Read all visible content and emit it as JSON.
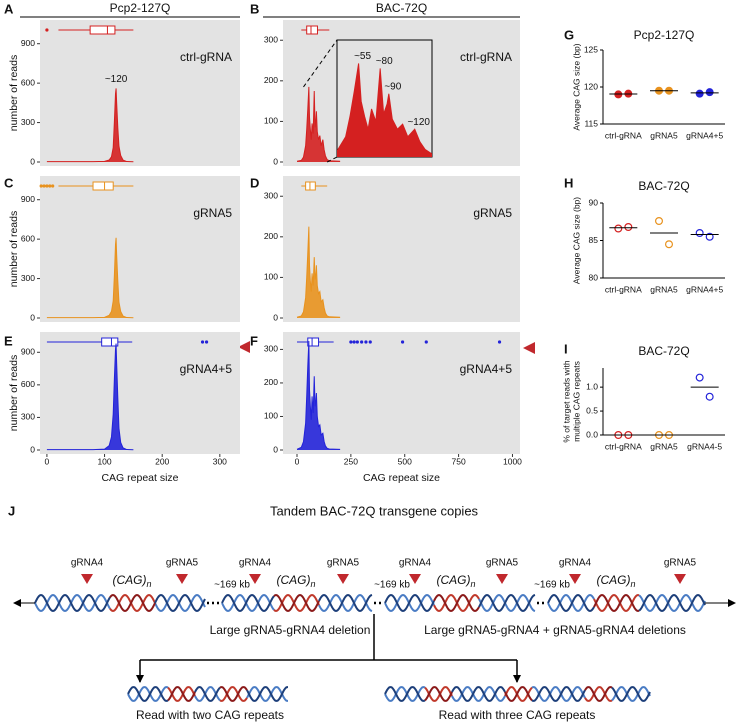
{
  "chart_data": [
    {
      "type": "area",
      "panel": "A",
      "title": "Pcp2-127Q",
      "label": "ctrl-gRNA",
      "ylabel": "number of reads",
      "color": "#d42020",
      "x": [
        0,
        40,
        80,
        100,
        108,
        112,
        115,
        117,
        119,
        120,
        121,
        123,
        125,
        128,
        132,
        138,
        150
      ],
      "values": [
        3,
        3,
        3,
        5,
        15,
        40,
        110,
        300,
        520,
        560,
        450,
        260,
        120,
        50,
        15,
        4,
        2
      ],
      "xlim": [
        -12,
        335
      ],
      "ylim": [
        0,
        1050
      ],
      "yticks": [
        0,
        300,
        600,
        900
      ],
      "box": {
        "low": 20,
        "q1": 75,
        "median": 105,
        "q3": 118,
        "high": 150,
        "outliers": [
          0
        ]
      },
      "annotations": [
        {
          "text": "~120",
          "x": 120
        }
      ]
    },
    {
      "type": "area",
      "panel": "B",
      "title": "BAC-72Q",
      "label": "ctrl-gRNA",
      "color": "#d42020",
      "x": [
        0,
        20,
        30,
        40,
        45,
        50,
        55,
        58,
        62,
        66,
        70,
        75,
        80,
        84,
        88,
        90,
        94,
        100,
        106,
        112,
        120,
        126,
        132,
        140,
        150,
        200
      ],
      "values": [
        2,
        4,
        12,
        40,
        80,
        130,
        185,
        110,
        80,
        55,
        95,
        70,
        175,
        85,
        105,
        125,
        75,
        55,
        65,
        40,
        55,
        30,
        15,
        6,
        3,
        2
      ],
      "xlim": [
        -65,
        1035
      ],
      "ylim": [
        0,
        340
      ],
      "yticks": [
        0,
        100,
        200,
        300
      ],
      "box": {
        "low": 20,
        "q1": 45,
        "median": 65,
        "q3": 95,
        "high": 150,
        "outliers": []
      },
      "inset": true,
      "annotations": [
        {
          "text": "~55",
          "x": 55
        },
        {
          "text": "~80",
          "x": 80
        },
        {
          "text": "~90",
          "x": 90
        },
        {
          "text": "~120",
          "x": 120
        }
      ]
    },
    {
      "type": "area",
      "panel": "C",
      "label": "gRNA5",
      "ylabel": "number of reads",
      "color": "#e8921e",
      "x": [
        0,
        40,
        80,
        100,
        108,
        112,
        115,
        117,
        119,
        120,
        121,
        123,
        125,
        128,
        132,
        138,
        150
      ],
      "values": [
        3,
        3,
        3,
        5,
        20,
        50,
        130,
        320,
        560,
        610,
        480,
        280,
        120,
        50,
        15,
        4,
        2
      ],
      "xlim": [
        -12,
        335
      ],
      "ylim": [
        0,
        1050
      ],
      "yticks": [
        0,
        300,
        600,
        900
      ],
      "box": {
        "low": 20,
        "q1": 80,
        "median": 100,
        "q3": 115,
        "high": 150,
        "outliers": [
          -10,
          -5,
          0,
          5,
          10
        ]
      }
    },
    {
      "type": "area",
      "panel": "D",
      "label": "gRNA5",
      "color": "#e8921e",
      "x": [
        0,
        20,
        30,
        40,
        45,
        50,
        55,
        58,
        62,
        66,
        70,
        75,
        80,
        84,
        88,
        90,
        94,
        100,
        106,
        112,
        120,
        126,
        132,
        140,
        150,
        200
      ],
      "values": [
        2,
        5,
        15,
        50,
        100,
        160,
        225,
        130,
        90,
        65,
        110,
        80,
        150,
        95,
        110,
        130,
        80,
        60,
        65,
        40,
        45,
        25,
        12,
        5,
        3,
        2
      ],
      "xlim": [
        -65,
        1035
      ],
      "ylim": [
        0,
        340
      ],
      "yticks": [
        0,
        100,
        200,
        300
      ],
      "box": {
        "low": 20,
        "q1": 40,
        "median": 60,
        "q3": 85,
        "high": 140,
        "outliers": []
      }
    },
    {
      "type": "area",
      "panel": "E",
      "label": "gRNA4+5",
      "ylabel": "number of reads",
      "xlabel": "CAG repeat size",
      "color": "#2323d9",
      "x": [
        0,
        40,
        80,
        100,
        108,
        112,
        115,
        117,
        119,
        120,
        121,
        123,
        125,
        128,
        132,
        138,
        150
      ],
      "values": [
        3,
        3,
        3,
        8,
        40,
        120,
        330,
        650,
        930,
        980,
        800,
        480,
        200,
        70,
        20,
        5,
        2
      ],
      "xlim": [
        -12,
        335
      ],
      "ylim": [
        0,
        1050
      ],
      "yticks": [
        0,
        300,
        600,
        900
      ],
      "xticks": [
        0,
        100,
        200,
        300
      ],
      "box": {
        "low": 0,
        "q1": 95,
        "median": 112,
        "q3": 123,
        "high": 148,
        "outliers": [
          270,
          277
        ]
      }
    },
    {
      "type": "area",
      "panel": "F",
      "label": "gRNA4+5",
      "xlabel": "CAG repeat size",
      "color": "#2323d9",
      "x": [
        0,
        20,
        30,
        40,
        45,
        50,
        55,
        58,
        62,
        66,
        70,
        75,
        80,
        84,
        88,
        90,
        94,
        100,
        106,
        112,
        120,
        126,
        132,
        140,
        150,
        200
      ],
      "values": [
        2,
        8,
        25,
        80,
        160,
        250,
        325,
        180,
        130,
        90,
        160,
        110,
        220,
        130,
        150,
        170,
        100,
        70,
        75,
        45,
        50,
        25,
        12,
        5,
        3,
        2
      ],
      "xlim": [
        -65,
        1035
      ],
      "ylim": [
        0,
        340
      ],
      "yticks": [
        0,
        100,
        200,
        300
      ],
      "xticks": [
        0,
        250,
        500,
        750,
        1000
      ],
      "box": {
        "low": 0,
        "q1": 50,
        "median": 70,
        "q3": 100,
        "high": 170,
        "outliers": [
          250,
          265,
          280,
          300,
          320,
          340,
          490,
          600,
          940
        ]
      }
    },
    {
      "type": "dot",
      "panel": "G",
      "title": "Pcp2-127Q",
      "ylabel": "Average CAG size (bp)",
      "filled": true,
      "categories": [
        "ctrl-gRNA",
        "gRNA5",
        "gRNA4+5"
      ],
      "colors": [
        "#d42020",
        "#e8921e",
        "#2323d9"
      ],
      "values": [
        [
          119.0,
          119.1
        ],
        [
          119.5,
          119.5
        ],
        [
          119.1,
          119.3
        ]
      ],
      "means": [
        119.05,
        119.5,
        119.2
      ],
      "ylim": [
        115,
        125
      ],
      "yticks": [
        115,
        120,
        125
      ]
    },
    {
      "type": "dot",
      "panel": "H",
      "title": "BAC-72Q",
      "ylabel": "Average CAG size (bp)",
      "filled": false,
      "categories": [
        "ctrl-gRNA",
        "gRNA5",
        "gRNA4+5"
      ],
      "colors": [
        "#d42020",
        "#e8921e",
        "#2323d9"
      ],
      "values": [
        [
          86.6,
          86.8
        ],
        [
          87.6,
          84.5
        ],
        [
          86.0,
          85.5
        ]
      ],
      "means": [
        86.7,
        86.0,
        85.8
      ],
      "ylim": [
        80,
        90
      ],
      "yticks": [
        80,
        85,
        90
      ]
    },
    {
      "type": "dot",
      "panel": "I",
      "title": "BAC-72Q",
      "ylabel": [
        "% of target reads with",
        "multiple CAG repeats"
      ],
      "filled": false,
      "categories": [
        "ctrl-gRNA",
        "gRNA5",
        "gRNA4-5"
      ],
      "colors": [
        "#d42020",
        "#e8921e",
        "#2323d9"
      ],
      "values": [
        [
          0,
          0
        ],
        [
          0,
          0
        ],
        [
          1.2,
          0.8
        ]
      ],
      "means": [
        0,
        0,
        1.0
      ],
      "ylim": [
        0,
        1.4
      ],
      "yticks": [
        {
          "value": 0,
          "label": "0.0"
        },
        {
          "value": 0.5,
          "label": "0.5"
        },
        {
          "value": 1,
          "label": "1.0"
        }
      ]
    }
  ],
  "diagram": {
    "panel": "J",
    "title": "Tandem BAC-72Q transgene copies",
    "guides": [
      "gRNA4",
      "gRNA5",
      "gRNA4",
      "gRNA5",
      "gRNA4",
      "gRNA5",
      "gRNA4",
      "gRNA5"
    ],
    "cag": [
      {
        "text": "(CAG)",
        "sub": "n"
      },
      {
        "text": "(CAG)",
        "sub": "n"
      },
      {
        "text": "(CAG)",
        "sub": "n"
      },
      {
        "text": "(CAG)",
        "sub": "n"
      }
    ],
    "spacers": [
      "~169 kb",
      "~169 kb",
      "~169 kb"
    ],
    "deletions": [
      "Large gRNA5-gRNA4 deletion",
      "Large gRNA5-gRNA4 + gRNA5-gRNA4 deletions"
    ],
    "reads": [
      "Read with two CAG repeats",
      "Read with three CAG repeats"
    ]
  }
}
